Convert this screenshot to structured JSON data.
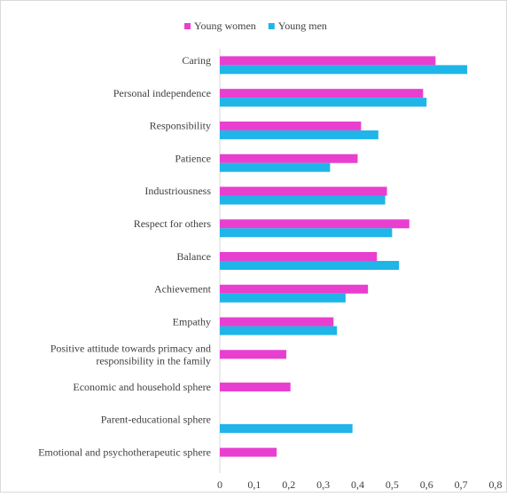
{
  "chart_data": {
    "type": "barh",
    "categories": [
      "Caring",
      "Personal independence",
      "Responsibility",
      "Patience",
      "Industriousness",
      "Respect for others",
      "Balance",
      "Achievement",
      "Empathy",
      "Positive attitude towards primacy and responsibility in the family",
      "Economic and household sphere",
      "Parent-educational sphere",
      "Emotional and psychotherapeutic sphere"
    ],
    "series": [
      {
        "name": "Young women",
        "color": "#e83fd0",
        "values": [
          0.626,
          0.59,
          0.41,
          0.4,
          0.485,
          0.55,
          0.456,
          0.43,
          0.33,
          0.193,
          0.205,
          null,
          0.165
        ]
      },
      {
        "name": "Young men",
        "color": "#1fb5e8",
        "values": [
          0.718,
          0.6,
          0.46,
          0.32,
          0.48,
          0.5,
          0.52,
          0.365,
          0.34,
          null,
          null,
          0.385,
          null
        ]
      }
    ],
    "xlim": [
      0,
      0.8
    ],
    "xticks": [
      0,
      {
        "value": 0.1,
        "label": "0,1"
      },
      {
        "value": 0.2,
        "label": "0,2"
      },
      {
        "value": 0.3,
        "label": "0,3"
      },
      {
        "value": 0.4,
        "label": "0,4"
      },
      {
        "value": 0.5,
        "label": "0,5"
      },
      {
        "value": 0.6,
        "label": "0,6"
      },
      {
        "value": 0.7,
        "label": "0,7"
      },
      {
        "value": 0.8,
        "label": "0,8"
      }
    ],
    "grid": false,
    "legend": "top"
  }
}
